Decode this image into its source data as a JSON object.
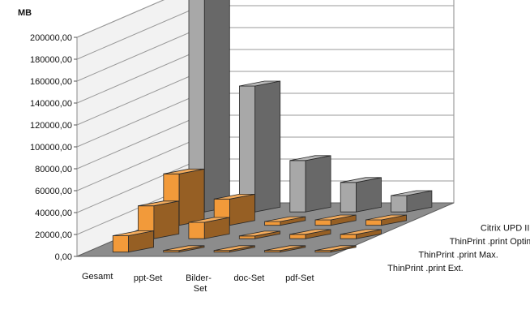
{
  "chart_data": {
    "type": "bar",
    "subtype": "3d-grouped",
    "title": "",
    "unit_label": "MB",
    "ylim": [
      0,
      200000
    ],
    "y_ticks": [
      "0,00",
      "20000,00",
      "40000,00",
      "60000,00",
      "80000,00",
      "100000,00",
      "120000,00",
      "140000,00",
      "160000,00",
      "180000,00",
      "200000,00"
    ],
    "categories": [
      {
        "line1": "Gesamt",
        "line2": ""
      },
      {
        "line1": "ppt-Set",
        "line2": ""
      },
      {
        "line1": "Bilder-",
        "line2": "Set"
      },
      {
        "line1": "doc-Set",
        "line2": ""
      },
      {
        "line1": "pdf-Set",
        "line2": ""
      }
    ],
    "series": [
      {
        "name": "ThinPrint .print Ext.",
        "color": "#f29a3a",
        "values": [
          15000,
          1500,
          1500,
          1500,
          1500
        ]
      },
      {
        "name": "ThinPrint .print Max.",
        "color": "#f29a3a",
        "values": [
          30000,
          15000,
          2500,
          4000,
          4000
        ]
      },
      {
        "name": "ThinPrint .print Optimal",
        "color": "#f29a3a",
        "values": [
          47000,
          24000,
          3500,
          5000,
          5000
        ]
      },
      {
        "name": "Citrix UPD III",
        "color": "#a8a8a8",
        "values": [
          200000,
          115000,
          47000,
          27000,
          15000
        ]
      }
    ],
    "grid": true,
    "legend": "none"
  }
}
